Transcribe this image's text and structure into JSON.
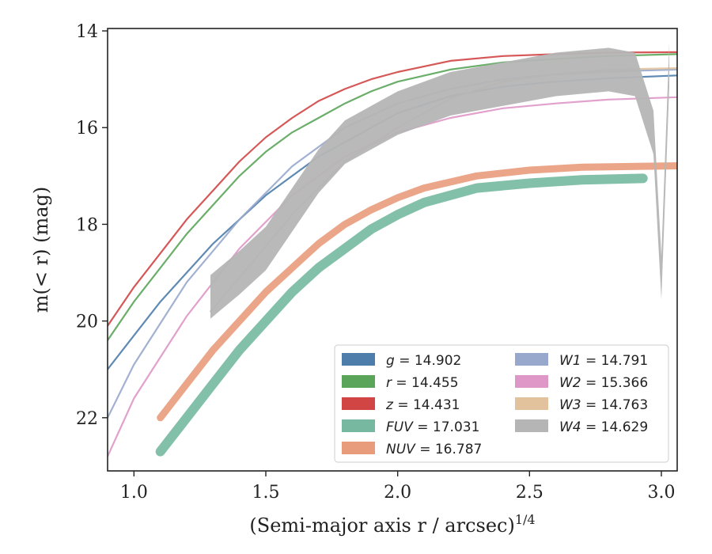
{
  "chart_data": {
    "type": "line",
    "xlabel": "(Semi-major axis r / arcsec)^{1/4}",
    "ylabel": "m(< r) (mag)",
    "xlim": [
      0.9,
      3.06
    ],
    "ylim": [
      23.1,
      13.95
    ],
    "y_inverted": true,
    "grid": false,
    "legend_position": "lower-right",
    "x_ticks": [
      "1.0",
      "1.5",
      "2.0",
      "2.5",
      "3.0"
    ],
    "y_ticks": [
      "14",
      "16",
      "18",
      "20",
      "22"
    ],
    "series": [
      {
        "name": "g = 14.902",
        "label_var": "g",
        "label_val": "14.902",
        "color": "#4c7dab",
        "x": [
          0.9,
          1.0,
          1.1,
          1.2,
          1.3,
          1.4,
          1.5,
          1.6,
          1.7,
          1.8,
          1.9,
          2.0,
          2.2,
          2.4,
          2.6,
          2.8,
          3.06
        ],
        "y": [
          21.0,
          20.3,
          19.6,
          19.0,
          18.4,
          17.9,
          17.4,
          17.0,
          16.6,
          16.3,
          16.0,
          15.7,
          15.35,
          15.15,
          15.05,
          14.98,
          14.92
        ]
      },
      {
        "name": "r = 14.455",
        "label_var": "r",
        "label_val": "14.455",
        "color": "#5aa55a",
        "x": [
          0.9,
          1.0,
          1.1,
          1.2,
          1.3,
          1.4,
          1.5,
          1.6,
          1.7,
          1.8,
          1.9,
          2.0,
          2.2,
          2.4,
          2.6,
          2.8,
          3.06
        ],
        "y": [
          20.4,
          19.6,
          18.9,
          18.2,
          17.6,
          17.0,
          16.5,
          16.1,
          15.8,
          15.5,
          15.25,
          15.05,
          14.8,
          14.65,
          14.58,
          14.52,
          14.48
        ]
      },
      {
        "name": "z = 14.431",
        "label_var": "z",
        "label_val": "14.431",
        "color": "#d14545",
        "x": [
          0.9,
          1.0,
          1.1,
          1.2,
          1.3,
          1.4,
          1.5,
          1.6,
          1.7,
          1.8,
          1.9,
          2.0,
          2.2,
          2.4,
          2.6,
          2.8,
          3.06
        ],
        "y": [
          20.1,
          19.3,
          18.6,
          17.9,
          17.3,
          16.7,
          16.2,
          15.8,
          15.45,
          15.2,
          15.0,
          14.85,
          14.62,
          14.52,
          14.48,
          14.45,
          14.44
        ]
      },
      {
        "name": "FUV = 17.031",
        "label_var": "FUV",
        "label_val": "17.031",
        "color": "#76b9a0",
        "x": [
          1.1,
          1.2,
          1.3,
          1.4,
          1.5,
          1.6,
          1.7,
          1.8,
          1.9,
          2.0,
          2.1,
          2.3,
          2.5,
          2.7,
          2.93
        ],
        "y": [
          22.7,
          22.0,
          21.3,
          20.6,
          20.0,
          19.4,
          18.9,
          18.5,
          18.1,
          17.8,
          17.55,
          17.25,
          17.15,
          17.08,
          17.05
        ]
      },
      {
        "name": "NUV = 16.787",
        "label_var": "NUV",
        "label_val": "16.787",
        "color": "#e99c7c",
        "x": [
          1.1,
          1.2,
          1.3,
          1.4,
          1.5,
          1.6,
          1.7,
          1.8,
          1.9,
          2.0,
          2.1,
          2.3,
          2.5,
          2.7,
          3.06
        ],
        "y": [
          22.0,
          21.3,
          20.6,
          20.0,
          19.4,
          18.9,
          18.4,
          18.0,
          17.7,
          17.45,
          17.25,
          17.0,
          16.88,
          16.82,
          16.79
        ]
      },
      {
        "name": "W1 = 14.791",
        "label_var": "W1",
        "label_val": "14.791",
        "color": "#98a8cc",
        "x": [
          0.9,
          1.0,
          1.2,
          1.4,
          1.6,
          1.8,
          2.0,
          2.2,
          2.4,
          2.6,
          2.8,
          3.06
        ],
        "y": [
          22.0,
          20.9,
          19.2,
          17.9,
          16.8,
          16.0,
          15.5,
          15.2,
          15.0,
          14.9,
          14.84,
          14.8
        ]
      },
      {
        "name": "W2 = 15.366",
        "label_var": "W2",
        "label_val": "15.366",
        "color": "#de97c6",
        "x": [
          0.9,
          1.0,
          1.2,
          1.4,
          1.6,
          1.8,
          2.0,
          2.2,
          2.4,
          2.6,
          2.8,
          3.06
        ],
        "y": [
          22.8,
          21.6,
          19.9,
          18.5,
          17.4,
          16.6,
          16.1,
          15.8,
          15.6,
          15.5,
          15.42,
          15.37
        ]
      },
      {
        "name": "W3 = 14.763",
        "label_var": "W3",
        "label_val": "14.763",
        "color": "#e2c29c",
        "x": [
          1.29,
          1.4,
          1.6,
          1.8,
          2.0,
          2.2,
          2.4,
          2.58,
          2.8,
          3.06
        ],
        "y": [
          19.8,
          19.1,
          17.8,
          16.7,
          16.0,
          15.4,
          15.05,
          14.9,
          14.8,
          14.77
        ]
      },
      {
        "name": "W4 = 14.629",
        "label_var": "W4",
        "label_val": "14.629",
        "color": "#b5b5b5",
        "x": [
          1.29,
          1.4,
          1.5,
          1.6,
          1.7,
          1.8,
          1.9,
          2.0,
          2.2,
          2.4,
          2.6,
          2.8,
          2.9,
          2.97,
          3.0,
          3.03
        ],
        "y": [
          19.4,
          18.9,
          18.4,
          17.6,
          16.8,
          16.2,
          15.9,
          15.6,
          15.2,
          15.0,
          14.8,
          14.7,
          14.8,
          16.0,
          19.0,
          14.6
        ]
      }
    ]
  }
}
